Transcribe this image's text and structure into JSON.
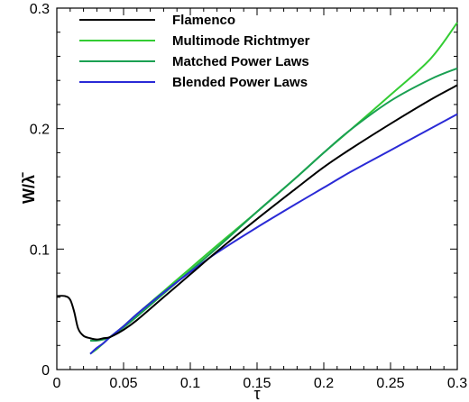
{
  "chart_data": {
    "type": "line",
    "xlabel": "τ",
    "ylabel": "W/λ̄",
    "xlim": [
      0,
      0.3
    ],
    "ylim": [
      0,
      0.3
    ],
    "xticks": [
      "0",
      "0.05",
      "0.1",
      "0.15",
      "0.2",
      "0.25",
      "0.3"
    ],
    "yticks": [
      "0",
      "0.1",
      "0.2",
      "0.3"
    ],
    "grid": false,
    "legend_position": "top-left",
    "series": [
      {
        "name": "Flamenco",
        "color": "#000000",
        "x": [
          0,
          0.006,
          0.01,
          0.013,
          0.016,
          0.02,
          0.025,
          0.03,
          0.035,
          0.04,
          0.05,
          0.06,
          0.08,
          0.1,
          0.12,
          0.15,
          0.18,
          0.2,
          0.22,
          0.25,
          0.28,
          0.3
        ],
        "y": [
          0.061,
          0.061,
          0.058,
          0.048,
          0.034,
          0.028,
          0.026,
          0.025,
          0.026,
          0.027,
          0.033,
          0.041,
          0.06,
          0.079,
          0.098,
          0.125,
          0.151,
          0.168,
          0.183,
          0.204,
          0.224,
          0.236
        ]
      },
      {
        "name": "Multimode Richtmyer",
        "color": "#33cc33",
        "x": [
          0.025,
          0.03,
          0.035,
          0.04,
          0.05,
          0.06,
          0.08,
          0.1,
          0.12,
          0.15,
          0.18,
          0.2,
          0.22,
          0.25,
          0.28,
          0.3
        ],
        "y": [
          0.013,
          0.017,
          0.022,
          0.027,
          0.036,
          0.046,
          0.065,
          0.084,
          0.103,
          0.131,
          0.16,
          0.18,
          0.199,
          0.228,
          0.258,
          0.288
        ]
      },
      {
        "name": "Matched Power Laws",
        "color": "#1aa052",
        "x": [
          0.025,
          0.03,
          0.035,
          0.04,
          0.05,
          0.06,
          0.08,
          0.1,
          0.12,
          0.15,
          0.18,
          0.2,
          0.22,
          0.25,
          0.28,
          0.3
        ],
        "y": [
          0.024,
          0.024,
          0.025,
          0.027,
          0.035,
          0.044,
          0.063,
          0.082,
          0.101,
          0.131,
          0.16,
          0.18,
          0.199,
          0.223,
          0.241,
          0.25
        ]
      },
      {
        "name": "Blended Power Laws",
        "color": "#2a2ad6",
        "x": [
          0.025,
          0.03,
          0.035,
          0.04,
          0.05,
          0.06,
          0.08,
          0.1,
          0.12,
          0.15,
          0.18,
          0.2,
          0.22,
          0.25,
          0.28,
          0.3
        ],
        "y": [
          0.013,
          0.018,
          0.022,
          0.027,
          0.036,
          0.046,
          0.064,
          0.081,
          0.097,
          0.118,
          0.138,
          0.151,
          0.164,
          0.182,
          0.2,
          0.212
        ]
      }
    ]
  }
}
